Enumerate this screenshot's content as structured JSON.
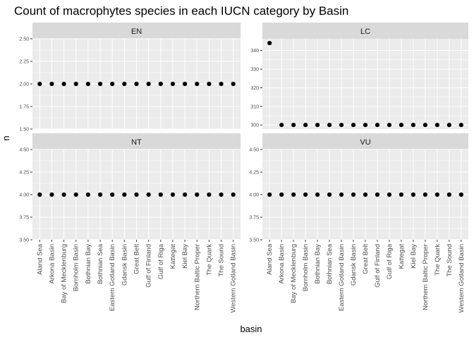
{
  "chart_data": {
    "type": "scatter",
    "title": "Count of macrophytes species in each IUCN category by Basin",
    "xlabel": "basin",
    "ylabel": "n",
    "categories": [
      "Aland Sea",
      "Arkona Basin",
      "Bay of Mecklenburg",
      "Bornholm Basin",
      "Bothnian Bay",
      "Bothnian Sea",
      "Eastern Gotland Basin",
      "Gdansk Basin",
      "Great Belt",
      "Gulf of Finland",
      "Gulf of Riga",
      "Kattegat",
      "Kiel Bay",
      "Northern Baltic Proper",
      "The Quark",
      "The Sound",
      "Western Gotland Basin"
    ],
    "grid": true,
    "facets": [
      {
        "label": "EN",
        "ylim": [
          1.5,
          2.5
        ],
        "yticks": [
          1.5,
          1.75,
          2.0,
          2.25,
          2.5
        ],
        "yticklabels": [
          "1.50",
          "1.75",
          "2.00",
          "2.25",
          "2.50"
        ],
        "values": [
          2,
          2,
          2,
          2,
          2,
          2,
          2,
          2,
          2,
          2,
          2,
          2,
          2,
          2,
          2,
          2,
          2
        ]
      },
      {
        "label": "LC",
        "ylim": [
          297.8,
          346.3
        ],
        "yticks": [
          300,
          310,
          320,
          330,
          340
        ],
        "yticklabels": [
          "300",
          "310",
          "320",
          "330",
          "340"
        ],
        "values": [
          344,
          300,
          300,
          300,
          300,
          300,
          300,
          300,
          300,
          300,
          300,
          300,
          300,
          300,
          300,
          300,
          300
        ]
      },
      {
        "label": "NT",
        "ylim": [
          3.5,
          4.5
        ],
        "yticks": [
          3.5,
          3.75,
          4.0,
          4.25,
          4.5
        ],
        "yticklabels": [
          "3.50",
          "3.75",
          "4.00",
          "4.25",
          "4.50"
        ],
        "values": [
          4,
          4,
          4,
          4,
          4,
          4,
          4,
          4,
          4,
          4,
          4,
          4,
          4,
          4,
          4,
          4,
          4
        ]
      },
      {
        "label": "VU",
        "ylim": [
          3.5,
          4.5
        ],
        "yticks": [
          3.5,
          3.75,
          4.0,
          4.25,
          4.5
        ],
        "yticklabels": [
          "3.50",
          "3.75",
          "4.00",
          "4.25",
          "4.50"
        ],
        "values": [
          4,
          4,
          4,
          4,
          4,
          4,
          4,
          4,
          4,
          4,
          4,
          4,
          4,
          4,
          4,
          4,
          4
        ]
      }
    ],
    "colors": {
      "panel_bg": "#ebebeb",
      "strip_bg": "#d9d9d9",
      "grid_major": "#ffffff",
      "point": "#000000",
      "text": "#1a1a1a",
      "tick_text": "#4d4d4d"
    }
  }
}
